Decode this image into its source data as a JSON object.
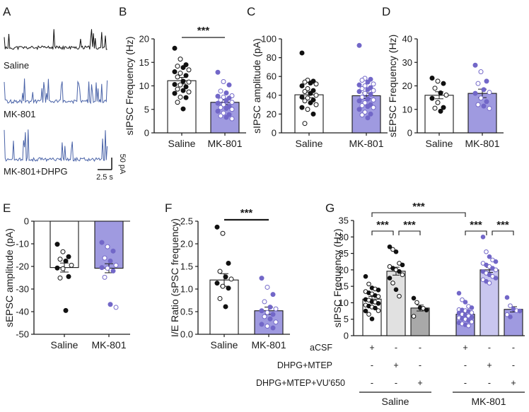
{
  "colors": {
    "saline_bar": "#ffffff",
    "mk_bar": "#9f9ae0",
    "mk_light": "#c9c6ef",
    "saline_mtep": "#e1e1e1",
    "saline_vu": "#a9a9a9",
    "dot_purple": "#7267c8",
    "trace_black": "#111111",
    "trace_blue": "#4a63a8"
  },
  "panelA": {
    "letter": "A",
    "traces": [
      "Saline",
      "MK-801",
      "MK-801+DHPG"
    ],
    "scale_y": "50 pA",
    "scale_x": "2.5 s"
  },
  "chart_data": [
    {
      "panel": "B",
      "type": "bar",
      "ylabel": "sIPSC Frequency (Hz)",
      "ylim": [
        0,
        20
      ],
      "yticks": [
        0,
        5,
        10,
        15,
        20
      ],
      "categories": [
        "Saline",
        "MK-801"
      ],
      "values": [
        11.1,
        6.5
      ],
      "sem": [
        0.7,
        0.5
      ],
      "significance": [
        {
          "pair": [
            "Saline",
            "MK-801"
          ],
          "label": "***"
        }
      ],
      "points": [
        [
          18.0,
          15.7,
          14.5,
          14.2,
          13.9,
          13.4,
          13.0,
          12.7,
          12.2,
          11.9,
          11.0,
          10.8,
          10.3,
          10.2,
          9.8,
          9.3,
          9.0,
          8.7,
          8.4,
          7.6,
          7.5,
          6.5,
          5.1
        ],
        [
          12.9,
          10.9,
          10.2,
          8.9,
          8.5,
          7.9,
          7.8,
          7.6,
          7.4,
          7.0,
          6.9,
          6.5,
          6.3,
          6.0,
          5.6,
          5.4,
          5.2,
          5.0,
          4.6,
          4.2,
          3.9,
          3.6,
          3.3,
          3.0
        ]
      ]
    },
    {
      "panel": "C",
      "type": "bar",
      "ylabel": "sIPSC amplitude (pA)",
      "ylim": [
        0,
        100
      ],
      "yticks": [
        0,
        20,
        40,
        60,
        80,
        100
      ],
      "categories": [
        "Saline",
        "MK-801"
      ],
      "values": [
        40.5,
        39.5
      ],
      "sem": [
        3.0,
        3.0
      ],
      "significance": [],
      "points": [
        [
          85,
          56,
          55,
          54,
          53,
          52,
          50,
          47,
          45,
          44,
          42,
          40,
          38,
          37,
          35,
          34,
          32,
          30,
          27,
          25,
          20,
          10
        ],
        [
          93,
          58,
          57,
          56,
          54,
          52,
          51,
          50,
          48,
          47,
          46,
          45,
          44,
          42,
          41,
          38,
          36,
          35,
          34,
          32,
          30,
          29,
          28,
          27,
          25,
          22,
          20,
          19,
          16
        ]
      ]
    },
    {
      "panel": "D",
      "type": "bar",
      "ylabel": "sEPSC Frequency (Hz)",
      "ylim": [
        0,
        40
      ],
      "yticks": [
        0,
        10,
        20,
        30,
        40
      ],
      "categories": [
        "Saline",
        "MK-801"
      ],
      "values": [
        16.0,
        16.8
      ],
      "sem": [
        1.5,
        1.8
      ],
      "significance": [],
      "points": [
        [
          23.3,
          22.0,
          21.0,
          19.0,
          17.0,
          16.1,
          14.7,
          12.9,
          10.8,
          10.5,
          9.2
        ],
        [
          28.8,
          26.0,
          22.0,
          21.0,
          18.4,
          17.2,
          16.8,
          14.8,
          13.3,
          12.0,
          11.4,
          10.4
        ]
      ]
    },
    {
      "panel": "E",
      "type": "bar",
      "ylabel": "sEPSC amplitude (pA)",
      "ylim": [
        -50,
        0
      ],
      "yticks": [
        0,
        -10,
        -20,
        -30,
        -40,
        -50
      ],
      "categories": [
        "Saline",
        "MK-801"
      ],
      "values": [
        -20.5,
        -20.8
      ],
      "sem": [
        2.0,
        2.0
      ],
      "significance": [],
      "points": [
        [
          -10.2,
          -13.5,
          -15.7,
          -16.8,
          -17.6,
          -19.5,
          -20.7,
          -21.0,
          -24.5,
          -25.1,
          -39.5
        ],
        [
          -9.4,
          -11.3,
          -13.2,
          -16.3,
          -17.6,
          -19.5,
          -20.5,
          -20.8,
          -22.0,
          -24.8,
          -36.8,
          -38.1
        ]
      ]
    },
    {
      "panel": "F",
      "type": "bar",
      "ylabel": "I/E Ratio (sPSC frequency)",
      "ylim": [
        0,
        2.5
      ],
      "yticks": [
        0,
        0.5,
        1.0,
        1.5,
        2.0,
        2.5
      ],
      "categories": [
        "Saline",
        "MK-801"
      ],
      "values": [
        1.2,
        0.52
      ],
      "sem": [
        0.14,
        0.08
      ],
      "significance": [
        {
          "pair": [
            "Saline",
            "MK-801"
          ],
          "label": "***"
        }
      ],
      "points": [
        [
          2.37,
          2.23,
          1.57,
          1.39,
          1.27,
          1.22,
          1.13,
          1.06,
          1.02,
          0.79,
          0.61
        ],
        [
          1.24,
          1.04,
          0.88,
          0.72,
          0.6,
          0.56,
          0.52,
          0.48,
          0.44,
          0.39,
          0.34,
          0.27,
          0.22,
          0.18,
          0.14
        ]
      ]
    },
    {
      "panel": "G",
      "type": "bar",
      "ylabel": "sIPSC Frequency (Hz)",
      "ylim": [
        0,
        35
      ],
      "yticks": [
        0,
        5,
        10,
        15,
        20,
        25,
        30,
        35
      ],
      "categories": [
        "Saline aCSF",
        "Saline DHPG+MTEP",
        "Saline DHPG+MTEP+VU'650",
        "MK-801 aCSF",
        "MK-801 DHPG+MTEP",
        "MK-801 DHPG+MTEP+VU'650"
      ],
      "values": [
        11.1,
        19.6,
        8.4,
        6.5,
        20.0,
        8.0
      ],
      "sem": [
        0.8,
        1.2,
        0.9,
        0.5,
        0.8,
        0.8
      ],
      "significance": [
        {
          "pair": [
            0,
            1
          ],
          "label": "***"
        },
        {
          "pair": [
            1,
            2
          ],
          "label": "***"
        },
        {
          "pair": [
            3,
            4
          ],
          "label": "***"
        },
        {
          "pair": [
            4,
            5
          ],
          "label": "***"
        },
        {
          "pair": [
            0,
            3
          ],
          "label": "***"
        }
      ],
      "points": [
        [
          18.0,
          15.7,
          14.5,
          14.2,
          13.9,
          13.4,
          13.0,
          12.7,
          12.2,
          11.9,
          11.0,
          10.8,
          10.3,
          10.2,
          9.8,
          9.3,
          9.0,
          8.7,
          8.4,
          7.6,
          7.5,
          6.5,
          5.1
        ],
        [
          27.0,
          26.2,
          25.5,
          22.0,
          21.5,
          21.0,
          20.5,
          20.0,
          19.5,
          18.5,
          17.5,
          16.0,
          14.0,
          12.0
        ],
        [
          11.4,
          10.1,
          8.5,
          8.3,
          7.8,
          5.9
        ],
        [
          12.9,
          10.9,
          10.2,
          8.9,
          8.5,
          7.9,
          7.8,
          7.6,
          7.4,
          7.0,
          6.9,
          6.5,
          6.3,
          6.0,
          5.6,
          5.4,
          5.2,
          5.0,
          4.6,
          4.2,
          3.9,
          3.6,
          3.3,
          3.0
        ],
        [
          30.0,
          25.5,
          24.0,
          23.0,
          22.5,
          22.0,
          21.5,
          21.0,
          20.5,
          20.0,
          19.5,
          19.0,
          18.5,
          18.0,
          17.5,
          17.0,
          16.5,
          16.0
        ],
        [
          11.6,
          9.1,
          8.1,
          7.6,
          7.5,
          6.4,
          5.7
        ]
      ],
      "treatment_table": {
        "rows": [
          "aCSF",
          "DHPG+MTEP",
          "DHPG+MTEP+VU'650"
        ],
        "saline_marks": [
          [
            "+",
            "-",
            "-"
          ],
          [
            "-",
            "+",
            "-"
          ],
          [
            "-",
            "-",
            "+"
          ]
        ],
        "mk_marks": [
          [
            "+",
            "-",
            "-"
          ],
          [
            "-",
            "+",
            "-"
          ],
          [
            "-",
            "-",
            "+"
          ]
        ]
      },
      "group_labels": [
        "Saline",
        "MK-801"
      ]
    }
  ]
}
